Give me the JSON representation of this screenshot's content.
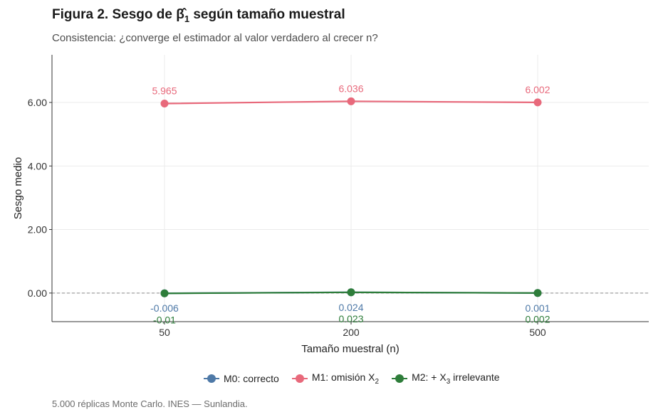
{
  "title": {
    "prefix": "Figura 2. Sesgo de β̂",
    "subscript": "1",
    "suffix": " según tamaño muestral"
  },
  "subtitle": "Consistencia: ¿converge el estimador al valor verdadero al crecer n?",
  "caption": "5.000 réplicas Monte Carlo. INES — Sunlandia.",
  "chart_data": {
    "type": "line",
    "xlabel": "Tamaño muestral (n)",
    "ylabel": "Sesgo medio",
    "categories": [
      "50",
      "200",
      "500"
    ],
    "ylim": [
      -0.9,
      7.5
    ],
    "yticks": [
      0,
      2,
      4,
      6
    ],
    "ytick_labels": [
      "0.00",
      "2.00",
      "4.00",
      "6.00"
    ],
    "reference_line": 0,
    "grid": true,
    "legend_position": "bottom",
    "series": [
      {
        "key": "m0",
        "name": "M0: correcto",
        "color": "#4e79a7",
        "values": [
          -0.006,
          0.024,
          0.001
        ],
        "labels": [
          "-0.006",
          "0.024",
          "0.001"
        ],
        "label_position": "below"
      },
      {
        "key": "m1",
        "name": "M1: omisión X",
        "name_sub": "2",
        "name_suffix": "",
        "color": "#e8697b",
        "values": [
          5.965,
          6.036,
          6.002
        ],
        "labels": [
          "5.965",
          "6.036",
          "6.002"
        ],
        "label_position": "above"
      },
      {
        "key": "m2",
        "name": "M2: + X",
        "name_sub": "3",
        "name_suffix": " irrelevante",
        "color": "#2e7d3a",
        "values": [
          -0.01,
          0.023,
          0.002
        ],
        "labels": [
          "-0.01",
          "0.023",
          "0.002"
        ],
        "label_position": "below2"
      }
    ]
  }
}
